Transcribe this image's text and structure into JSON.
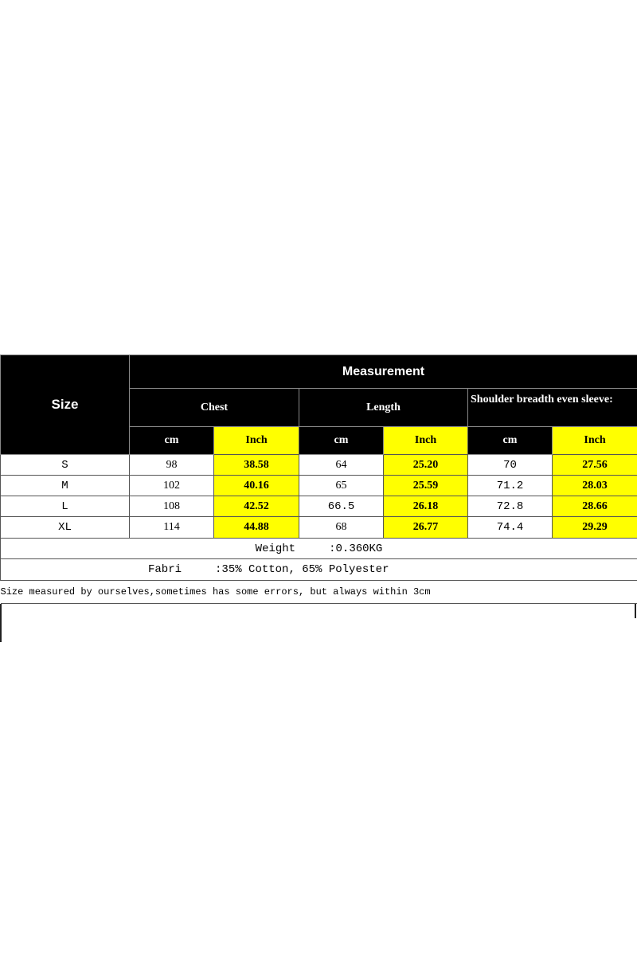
{
  "header": {
    "size_label": "Size",
    "measurement_label": "Measurement",
    "groups": [
      "Chest",
      "Length",
      "Shoulder breadth even sleeve:"
    ],
    "unit_cm": "cm",
    "unit_inch": "Inch"
  },
  "rows": [
    {
      "size": "S",
      "chest_cm": "98",
      "chest_in": "38.58",
      "length_cm": "64",
      "length_in": "25.20",
      "shoulder_cm": "70",
      "shoulder_in": "27.56"
    },
    {
      "size": "M",
      "chest_cm": "102",
      "chest_in": "40.16",
      "length_cm": "65",
      "length_in": "25.59",
      "shoulder_cm": "71.2",
      "shoulder_in": "28.03"
    },
    {
      "size": "L",
      "chest_cm": "108",
      "chest_in": "42.52",
      "length_cm": "66.5",
      "length_in": "26.18",
      "shoulder_cm": "72.8",
      "shoulder_in": "28.66"
    },
    {
      "size": "XL",
      "chest_cm": "114",
      "chest_in": "44.88",
      "length_cm": "68",
      "length_in": "26.77",
      "shoulder_cm": "74.4",
      "shoulder_in": "29.29"
    }
  ],
  "weight": {
    "label": "Weight",
    "value": ":0.360KG"
  },
  "fabric": {
    "label": "Fabri",
    "value": ":35% Cotton, 65% Polyester"
  },
  "note": "Size measured by ourselves,sometimes has some errors, but always within 3cm",
  "colors": {
    "header_bg": "#000000",
    "inch_bg": "#ffff00"
  }
}
